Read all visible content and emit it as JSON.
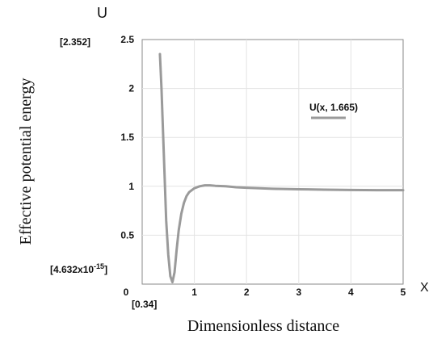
{
  "chart_data": {
    "type": "line",
    "title": "",
    "xlabel": "Dimensionless distance",
    "ylabel": "Effective potential energy",
    "x_axis_symbol": "X",
    "y_axis_symbol": "U",
    "xlim": [
      0,
      5
    ],
    "ylim": [
      0,
      2.5
    ],
    "x_ticks": [
      "0",
      "1",
      "2",
      "3",
      "4",
      "5"
    ],
    "y_ticks": [
      "0.5",
      "1",
      "1.5",
      "2",
      "2.5"
    ],
    "x_min_bracket": "[0.34]",
    "y_max_bracket": "[2.352]",
    "y_min_bracket": "[4.632x10",
    "y_min_bracket_exp": "-15",
    "y_min_bracket_close": "]",
    "grid": true,
    "legend_position": "upper-right",
    "series": [
      {
        "name": "U(x, 1.665)",
        "color": "#9a9a9a",
        "x": [
          0.34,
          0.37,
          0.4,
          0.43,
          0.46,
          0.5,
          0.54,
          0.58,
          0.62,
          0.66,
          0.7,
          0.75,
          0.8,
          0.85,
          0.9,
          1.0,
          1.1,
          1.2,
          1.3,
          1.4,
          1.6,
          1.8,
          2.0,
          2.5,
          3.0,
          3.5,
          4.0,
          4.5,
          5.0
        ],
        "y": [
          2.352,
          2.0,
          1.55,
          1.1,
          0.65,
          0.3,
          0.08,
          0.02,
          0.12,
          0.35,
          0.55,
          0.72,
          0.83,
          0.9,
          0.94,
          0.98,
          1.0,
          1.01,
          1.01,
          1.005,
          1.0,
          0.99,
          0.985,
          0.975,
          0.97,
          0.965,
          0.962,
          0.96,
          0.96
        ]
      }
    ]
  }
}
